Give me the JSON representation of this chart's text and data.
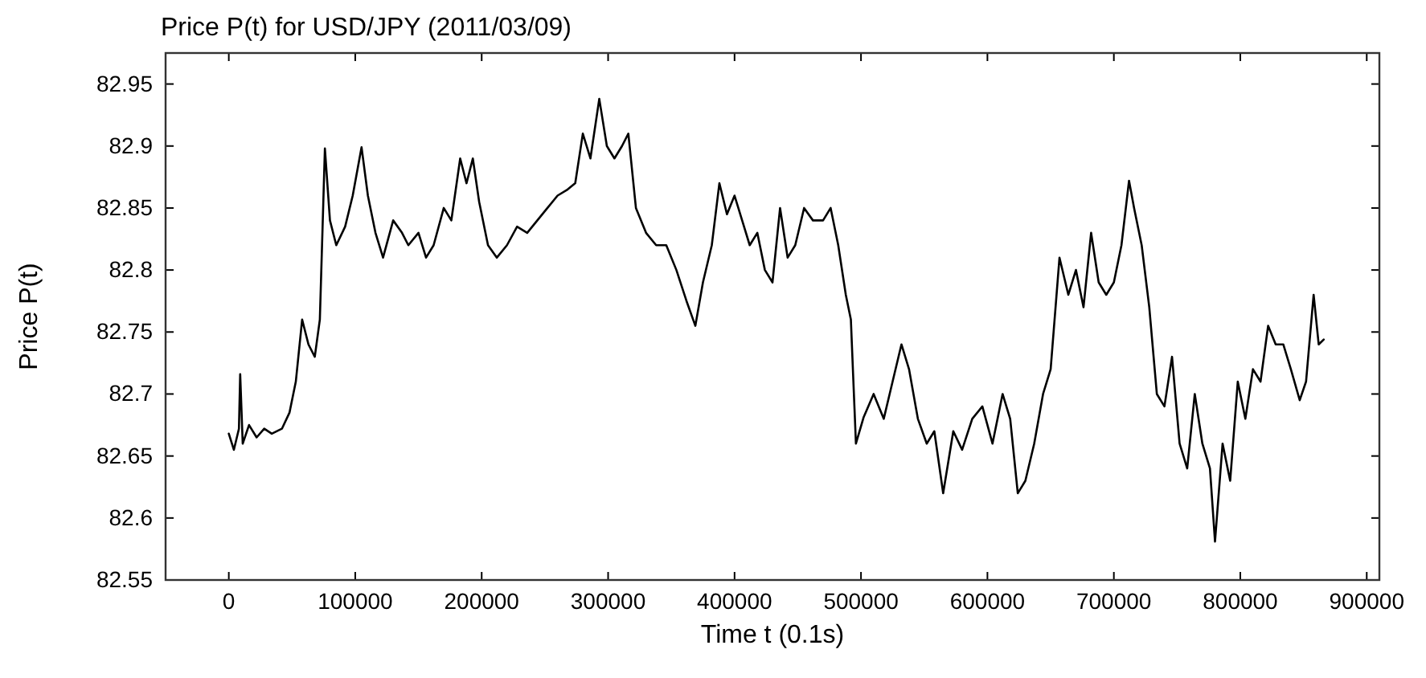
{
  "chart_data": {
    "type": "line",
    "title": "Price P(t) for USD/JPY (2011/03/09)",
    "xlabel": "Time t (0.1s)",
    "ylabel": "Price P(t)",
    "xlim": [
      -50000,
      910000
    ],
    "ylim": [
      82.55,
      82.975
    ],
    "xticks": [
      0,
      100000,
      200000,
      300000,
      400000,
      500000,
      600000,
      700000,
      800000,
      900000
    ],
    "yticks": [
      82.55,
      82.6,
      82.65,
      82.7,
      82.75,
      82.8,
      82.85,
      82.9,
      82.95
    ],
    "grid": false,
    "line_style": "solid",
    "marker": "none",
    "series": [
      {
        "color": "#000000",
        "x": [
          0,
          4000,
          8000,
          9000,
          11000,
          16000,
          22000,
          28000,
          34000,
          42000,
          48000,
          53000,
          58000,
          63000,
          68000,
          72000,
          76000,
          80000,
          85000,
          92000,
          98000,
          105000,
          110000,
          116000,
          122000,
          130000,
          137000,
          142000,
          150000,
          156000,
          162000,
          170000,
          176000,
          183000,
          188000,
          193000,
          198000,
          205000,
          212000,
          220000,
          228000,
          236000,
          244000,
          252000,
          260000,
          268000,
          274000,
          280000,
          286000,
          293000,
          299000,
          305000,
          311000,
          316000,
          322000,
          330000,
          338000,
          346000,
          354000,
          362000,
          369000,
          375000,
          382000,
          388000,
          394000,
          400000,
          406000,
          412000,
          418000,
          424000,
          430000,
          436000,
          442000,
          448000,
          455000,
          462000,
          470000,
          476000,
          482000,
          488000,
          492000,
          496000,
          502000,
          510000,
          518000,
          525000,
          532000,
          538000,
          545000,
          552000,
          558000,
          565000,
          573000,
          580000,
          588000,
          596000,
          604000,
          612000,
          618000,
          624000,
          630000,
          637000,
          644000,
          650000,
          657000,
          664000,
          670000,
          676000,
          682000,
          688000,
          694000,
          700000,
          706000,
          712000,
          716000,
          722000,
          728000,
          734000,
          740000,
          746000,
          752000,
          758000,
          764000,
          770000,
          776000,
          780000,
          786000,
          792000,
          798000,
          804000,
          810000,
          816000,
          822000,
          828000,
          834000,
          840000,
          847000,
          852000,
          858000,
          862000,
          866000
        ],
        "values": [
          82.668,
          82.655,
          82.672,
          82.716,
          82.66,
          82.675,
          82.665,
          82.672,
          82.668,
          82.672,
          82.685,
          82.71,
          82.76,
          82.74,
          82.73,
          82.76,
          82.898,
          82.84,
          82.82,
          82.835,
          82.86,
          82.899,
          82.86,
          82.83,
          82.81,
          82.84,
          82.83,
          82.82,
          82.83,
          82.81,
          82.82,
          82.85,
          82.84,
          82.89,
          82.87,
          82.89,
          82.855,
          82.82,
          82.81,
          82.82,
          82.835,
          82.83,
          82.84,
          82.85,
          82.86,
          82.865,
          82.87,
          82.91,
          82.89,
          82.938,
          82.9,
          82.89,
          82.9,
          82.91,
          82.85,
          82.83,
          82.82,
          82.82,
          82.8,
          82.775,
          82.755,
          82.79,
          82.82,
          82.87,
          82.845,
          82.86,
          82.84,
          82.82,
          82.83,
          82.8,
          82.79,
          82.85,
          82.81,
          82.82,
          82.85,
          82.84,
          82.84,
          82.85,
          82.82,
          82.78,
          82.76,
          82.66,
          82.681,
          82.7,
          82.68,
          82.71,
          82.74,
          82.72,
          82.68,
          82.66,
          82.67,
          82.62,
          82.67,
          82.655,
          82.68,
          82.69,
          82.66,
          82.7,
          82.68,
          82.62,
          82.63,
          82.66,
          82.7,
          82.72,
          82.81,
          82.78,
          82.8,
          82.77,
          82.83,
          82.79,
          82.78,
          82.79,
          82.82,
          82.872,
          82.85,
          82.82,
          82.77,
          82.7,
          82.69,
          82.73,
          82.66,
          82.64,
          82.7,
          82.66,
          82.64,
          82.581,
          82.66,
          82.63,
          82.71,
          82.68,
          82.72,
          82.71,
          82.755,
          82.74,
          82.74,
          82.72,
          82.695,
          82.71,
          82.78,
          82.74,
          82.744
        ]
      }
    ]
  }
}
